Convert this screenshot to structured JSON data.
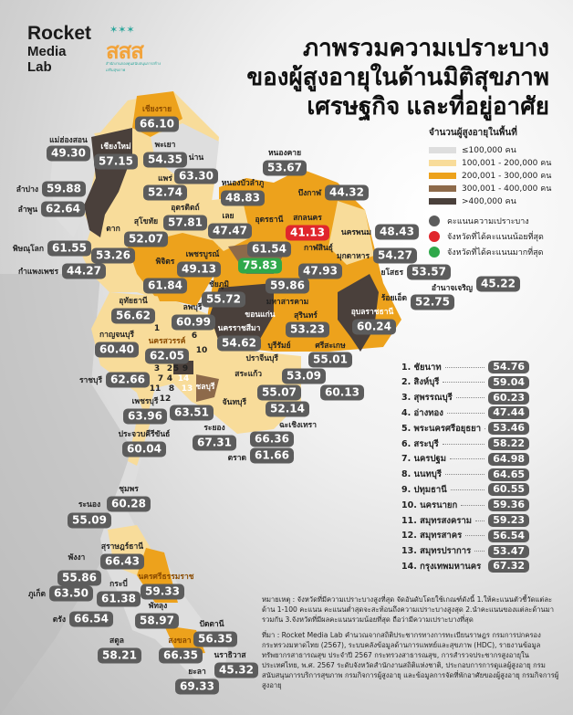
{
  "brand": {
    "name_lines": [
      "Rocket",
      "Media",
      "Lab"
    ],
    "partner_logo_text": "สสส",
    "partner_tagline": "สำนักงานกองทุนสนับสนุนการสร้างเสริมสุขภาพ"
  },
  "title": [
    "ภาพรวมความเปราะบาง",
    "ของผู้สูงอายุในด้านมิติสุขภาพ",
    "เศรษฐกิจ และที่อยู่อาศัย"
  ],
  "legend": {
    "heading": "จำนวนผู้สูงอายุในพื้นที่",
    "bins": [
      {
        "label": "≤100,000 คน",
        "color": "#dedede"
      },
      {
        "label": "100,001 - 200,000 คน",
        "color": "#f8dc9a"
      },
      {
        "label": "200,001 - 300,000 คน",
        "color": "#eda21c"
      },
      {
        "label": "300,001 - 400,000 คน",
        "color": "#8d6a4a"
      },
      {
        "label": ">400,000 คน",
        "color": "#4a403b"
      }
    ],
    "markers": [
      {
        "label": "คะแนนความเปราะบาง",
        "color": "#5c5c5c"
      },
      {
        "label": "จังหวัดที่ได้คะแนนน้อยที่สุด",
        "color": "#e0262c"
      },
      {
        "label": "จังหวัดที่ได้คะแนนมากที่สุด",
        "color": "#2fa84a"
      }
    ]
  },
  "provinces": [
    {
      "name": "เชียงราย",
      "value": "66.10"
    },
    {
      "name": "แม่ฮ่องสอน",
      "value": "49.30"
    },
    {
      "name": "เชียงใหม่",
      "value": "57.15"
    },
    {
      "name": "พะเยา",
      "value": "54.35"
    },
    {
      "name": "น่าน",
      "value": "63.30"
    },
    {
      "name": "แพร่",
      "value": "52.74"
    },
    {
      "name": "ลำปาง",
      "value": "59.88"
    },
    {
      "name": "ลำพูน",
      "value": "62.64"
    },
    {
      "name": "อุตรดิตถ์",
      "value": "57.81"
    },
    {
      "name": "สุโขทัย",
      "value": "52.07"
    },
    {
      "name": "ตาก",
      "value": "53.26"
    },
    {
      "name": "พิษณุโลก",
      "value": "61.55"
    },
    {
      "name": "กำแพงเพชร",
      "value": "44.27"
    },
    {
      "name": "พิจิตร",
      "value": "61.84"
    },
    {
      "name": "เพชรบูรณ์",
      "value": "49.13"
    },
    {
      "name": "หนองบัวลำภู",
      "value": "48.83"
    },
    {
      "name": "หนองคาย",
      "value": "53.67"
    },
    {
      "name": "บึงกาฬ",
      "value": "44.32"
    },
    {
      "name": "เลย",
      "value": "47.47"
    },
    {
      "name": "อุดรธานี",
      "value": "61.54"
    },
    {
      "name": "สกลนคร",
      "value": "41.13",
      "highlight": "lowest"
    },
    {
      "name": "นครพนม",
      "value": "48.43"
    },
    {
      "name": "ขอนแก่น",
      "value": "75.83",
      "highlight": "highest"
    },
    {
      "name": "กาฬสินธุ์",
      "value": "47.93"
    },
    {
      "name": "มุกดาหาร",
      "value": "54.27"
    },
    {
      "name": "ชัยภูมิ",
      "value": "55.72"
    },
    {
      "name": "มหาสารคาม",
      "value": "59.86"
    },
    {
      "name": "ยโสธร",
      "value": "53.57"
    },
    {
      "name": "อำนาจเจริญ",
      "value": "45.22"
    },
    {
      "name": "ร้อยเอ็ด",
      "value": "52.75"
    },
    {
      "name": "นครราชสีมา",
      "value": "54.62"
    },
    {
      "name": "สุรินทร์",
      "value": "53.23"
    },
    {
      "name": "บุรีรัมย์",
      "value": "55.07"
    },
    {
      "name": "ศรีสะเกษ",
      "value": "55.01"
    },
    {
      "name": "อุบลราชธานี",
      "value": "60.24"
    },
    {
      "name": "ปราจีนบุรี",
      "value": "53.09"
    },
    {
      "name": "สระแก้ว",
      "value": "52.14"
    },
    {
      "name": "ฉะเชิงเทรา",
      "value": "60.13"
    },
    {
      "name": "จันทบุรี",
      "value": "66.36"
    },
    {
      "name": "ตราด",
      "value": "61.66"
    },
    {
      "name": "นครสวรรค์",
      "value": "62.05"
    },
    {
      "name": "อุทัยธานี",
      "value": "56.62"
    },
    {
      "name": "ลพบุรี",
      "value": "60.99"
    },
    {
      "name": "กาญจนบุรี",
      "value": "60.40"
    },
    {
      "name": "ราชบุรี",
      "value": "62.66"
    },
    {
      "name": "เพชรบุรี",
      "value": "63.96"
    },
    {
      "name": "ชลบุรี",
      "value": "63.51"
    },
    {
      "name": "ระยอง",
      "value": "67.31"
    },
    {
      "name": "ประจวบคีรีขันธ์",
      "value": "60.04"
    },
    {
      "name": "ชุมพร",
      "value": "60.28"
    },
    {
      "name": "ระนอง",
      "value": "55.09"
    },
    {
      "name": "สุราษฎร์ธานี",
      "value": "66.43"
    },
    {
      "name": "พังงา",
      "value": "55.86"
    },
    {
      "name": "นครศรีธรรมราช",
      "value": "59.33"
    },
    {
      "name": "ภูเก็ต",
      "value": "63.50"
    },
    {
      "name": "กระบี่",
      "value": "61.38"
    },
    {
      "name": "พัทลุง",
      "value": "58.97"
    },
    {
      "name": "ตรัง",
      "value": "66.54"
    },
    {
      "name": "ปัตตานี",
      "value": "56.35"
    },
    {
      "name": "สตูล",
      "value": "58.21"
    },
    {
      "name": "สงขลา",
      "value": "66.35"
    },
    {
      "name": "นราธิวาส",
      "value": "45.32"
    },
    {
      "name": "ยะลา",
      "value": "69.33"
    }
  ],
  "central_list": [
    {
      "num": "1.",
      "name": "ชัยนาท",
      "value": "54.76"
    },
    {
      "num": "2.",
      "name": "สิงห์บุรี",
      "value": "59.04"
    },
    {
      "num": "3.",
      "name": "สุพรรณบุรี",
      "value": "60.23"
    },
    {
      "num": "4.",
      "name": "อ่างทอง",
      "value": "47.44"
    },
    {
      "num": "5.",
      "name": "พระนครศรีอยุธยา",
      "value": "53.46"
    },
    {
      "num": "6.",
      "name": "สระบุรี",
      "value": "58.22"
    },
    {
      "num": "7.",
      "name": "นครปฐม",
      "value": "64.98"
    },
    {
      "num": "8.",
      "name": "นนทบุรี",
      "value": "64.65"
    },
    {
      "num": "9.",
      "name": "ปทุมธานี",
      "value": "60.55"
    },
    {
      "num": "10.",
      "name": "นครนายก",
      "value": "59.36"
    },
    {
      "num": "11.",
      "name": "สมุทรสงคราม",
      "value": "59.23"
    },
    {
      "num": "12.",
      "name": "สมุทรสาคร",
      "value": "56.54"
    },
    {
      "num": "13.",
      "name": "สมุทรปราการ",
      "value": "53.47"
    },
    {
      "num": "14.",
      "name": "กรุงเทพมหานคร",
      "value": "67.32"
    }
  ],
  "map_numbers": [
    "1",
    "2",
    "3",
    "4",
    "5",
    "6",
    "7",
    "8",
    "9",
    "10",
    "11",
    "12",
    "13",
    "14"
  ],
  "notes": {
    "remark": "หมายเหตุ : จังหวัดที่มีความเปราะบางสูงที่สุด จัดอันดับโดยใช้เกณฑ์ดังนี้ 1.ให้คะแนนตัวชี้วัดแต่ละด้าน 1-100 คะแนน คะแนนต่ำสุดจะสะท้อนถึงความเปราะบางสูงสุด 2.นำคะแนนของแต่ละด้านมารวมกัน 3.จังหวัดที่มีผลคะแนนรวมน้อยที่สุด ถือว่ามีความเปราะบางที่สุด",
    "source": "ที่มา : Rocket Media Lab คำนวณจากสถิติประชากรทางการทะเบียนราษฎร กรมการปกครอง กระทรวงมหาดไทย (2567), ระบบคลังข้อมูลด้านการแพทย์และสุขภาพ (HDC), รายงานข้อมูลทรัพยากรสาธารณสุข ประจำปี 2567 กระทรวงสาธารณสุข, การสำรวจประชากรสูงอายุในประเทศไทย, พ.ศ. 2567 ระดับจังหวัดสำนักงานสถิติแห่งชาติ, ประกอบการการดูแลผู้สูงอายุ กรมสนับสนุนการบริการสุขภาพ กรมกิจการผู้สูงอายุ และข้อมูลการจัดที่พักอาศัยของผู้สูงอายุ กรมกิจการผู้สูงอายุ"
  }
}
